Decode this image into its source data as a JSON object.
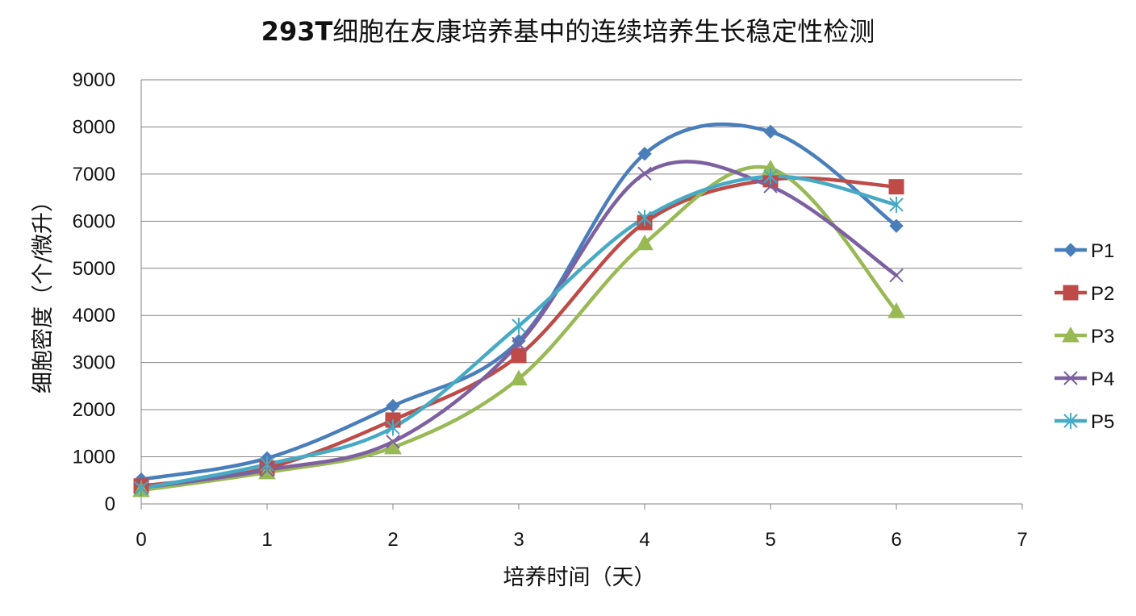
{
  "chart_data": {
    "type": "line",
    "title_prefix": "293T",
    "title_rest": "细胞在友康培养基中的连续培养生长稳定性检测",
    "xlabel": "培养时间（天）",
    "ylabel": "细胞密度（个/微升）",
    "xlim": [
      0,
      7
    ],
    "ylim": [
      0,
      9000
    ],
    "x_ticks": [
      0,
      1,
      2,
      3,
      4,
      5,
      6,
      7
    ],
    "y_ticks": [
      0,
      1000,
      2000,
      3000,
      4000,
      5000,
      6000,
      7000,
      8000,
      9000
    ],
    "grid": "horizontal",
    "legend_position": "right",
    "smooth": true,
    "x": [
      0,
      1,
      2,
      3,
      4,
      5,
      6
    ],
    "series": [
      {
        "name": "P1",
        "color": "#4A7EBB",
        "marker": "diamond",
        "values": [
          520,
          970,
          2080,
          3460,
          7430,
          7900,
          5900
        ]
      },
      {
        "name": "P2",
        "color": "#BE4B48",
        "marker": "square",
        "values": [
          380,
          760,
          1780,
          3150,
          5970,
          6880,
          6730
        ]
      },
      {
        "name": "P3",
        "color": "#98B954",
        "marker": "triangle",
        "values": [
          290,
          670,
          1200,
          2660,
          5530,
          7120,
          4090
        ]
      },
      {
        "name": "P4",
        "color": "#7D60A0",
        "marker": "x",
        "values": [
          340,
          720,
          1320,
          3400,
          7010,
          6740,
          4850
        ]
      },
      {
        "name": "P5",
        "color": "#46AAC5",
        "marker": "star",
        "values": [
          330,
          840,
          1620,
          3780,
          6070,
          6950,
          6350
        ]
      }
    ]
  }
}
